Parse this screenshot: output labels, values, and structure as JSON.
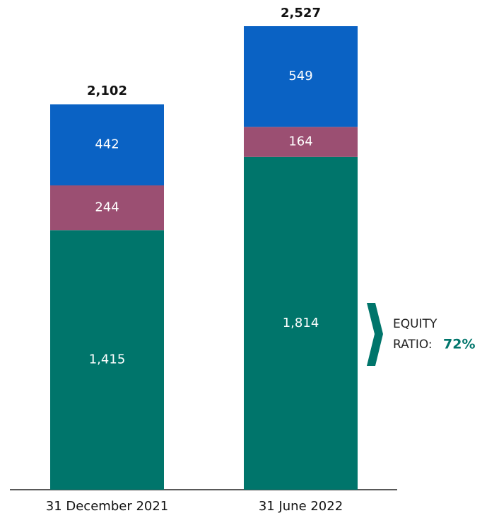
{
  "chart_data": {
    "type": "stacked_bar",
    "categories": [
      "31 December 2021",
      "31 June 2022"
    ],
    "series": [
      {
        "color": "#00756b",
        "values": [
          1415,
          1814
        ],
        "value_labels": [
          "1,415",
          "1,814"
        ]
      },
      {
        "color": "#9b4f72",
        "values": [
          244,
          164
        ]
      },
      {
        "color": "#0a62c4",
        "values": [
          442,
          549
        ]
      }
    ],
    "totals": [
      2102,
      2527
    ],
    "total_labels": [
      "2,102",
      "2,527"
    ],
    "annotation": {
      "lines": [
        "EQUITY",
        "RATIO:"
      ],
      "value": 72,
      "value_label": "72%",
      "color": "#00756b"
    }
  }
}
